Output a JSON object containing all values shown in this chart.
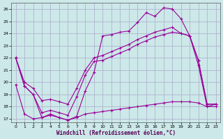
{
  "title": "",
  "xlabel": "Windchill (Refroidissement éolien,°C)",
  "ylabel": "",
  "background_color": "#cce8e8",
  "grid_color": "#aaaacc",
  "line_color": "#990099",
  "xlim_min": -0.5,
  "xlim_max": 23.5,
  "ylim_min": 16.7,
  "ylim_max": 26.5,
  "yticks": [
    17,
    18,
    19,
    20,
    21,
    22,
    23,
    24,
    25,
    26
  ],
  "xticks": [
    0,
    1,
    2,
    3,
    4,
    5,
    6,
    7,
    8,
    9,
    10,
    11,
    12,
    13,
    14,
    15,
    16,
    17,
    18,
    19,
    20,
    21,
    22,
    23
  ],
  "line1_x": [
    0,
    1,
    2,
    3,
    4,
    5,
    6,
    7,
    8,
    9,
    10,
    11,
    12,
    13,
    14,
    15,
    16,
    17,
    18,
    19,
    20,
    21,
    22,
    23
  ],
  "line1_y": [
    22.0,
    19.7,
    19.0,
    17.1,
    17.3,
    17.1,
    16.9,
    17.2,
    19.3,
    20.8,
    23.8,
    23.9,
    24.1,
    24.2,
    24.9,
    25.7,
    25.4,
    26.1,
    26.0,
    25.2,
    23.8,
    21.8,
    18.2,
    18.2
  ],
  "line2_x": [
    0,
    1,
    2,
    3,
    4,
    5,
    6,
    7,
    8,
    9,
    10,
    11,
    12,
    13,
    14,
    15,
    16,
    17,
    18,
    19,
    20,
    21,
    22,
    23
  ],
  "line2_y": [
    22.0,
    19.7,
    19.0,
    17.5,
    17.7,
    17.5,
    17.3,
    18.8,
    20.6,
    21.7,
    21.8,
    22.1,
    22.4,
    22.7,
    23.1,
    23.4,
    23.7,
    23.9,
    24.1,
    24.0,
    23.8,
    21.8,
    18.2,
    18.2
  ],
  "line3_x": [
    0,
    1,
    2,
    3,
    4,
    5,
    6,
    7,
    8,
    9,
    10,
    11,
    12,
    13,
    14,
    15,
    16,
    17,
    18,
    19,
    20,
    21,
    22,
    23
  ],
  "line3_y": [
    22.0,
    20.0,
    19.5,
    18.5,
    18.6,
    18.4,
    18.2,
    19.5,
    21.0,
    22.0,
    22.2,
    22.5,
    22.8,
    23.1,
    23.5,
    23.8,
    24.1,
    24.3,
    24.5,
    24.0,
    23.8,
    21.4,
    18.0,
    18.0
  ],
  "line4_x": [
    0,
    1,
    2,
    3,
    4,
    5,
    6,
    7,
    8,
    9,
    10,
    11,
    12,
    13,
    14,
    15,
    16,
    17,
    18,
    19,
    20,
    21,
    22,
    23
  ],
  "line4_y": [
    19.8,
    17.4,
    17.0,
    17.1,
    17.4,
    17.1,
    16.9,
    17.1,
    17.4,
    17.5,
    17.6,
    17.7,
    17.8,
    17.9,
    18.0,
    18.1,
    18.2,
    18.3,
    18.4,
    18.4,
    18.4,
    18.3,
    18.0,
    18.2
  ]
}
